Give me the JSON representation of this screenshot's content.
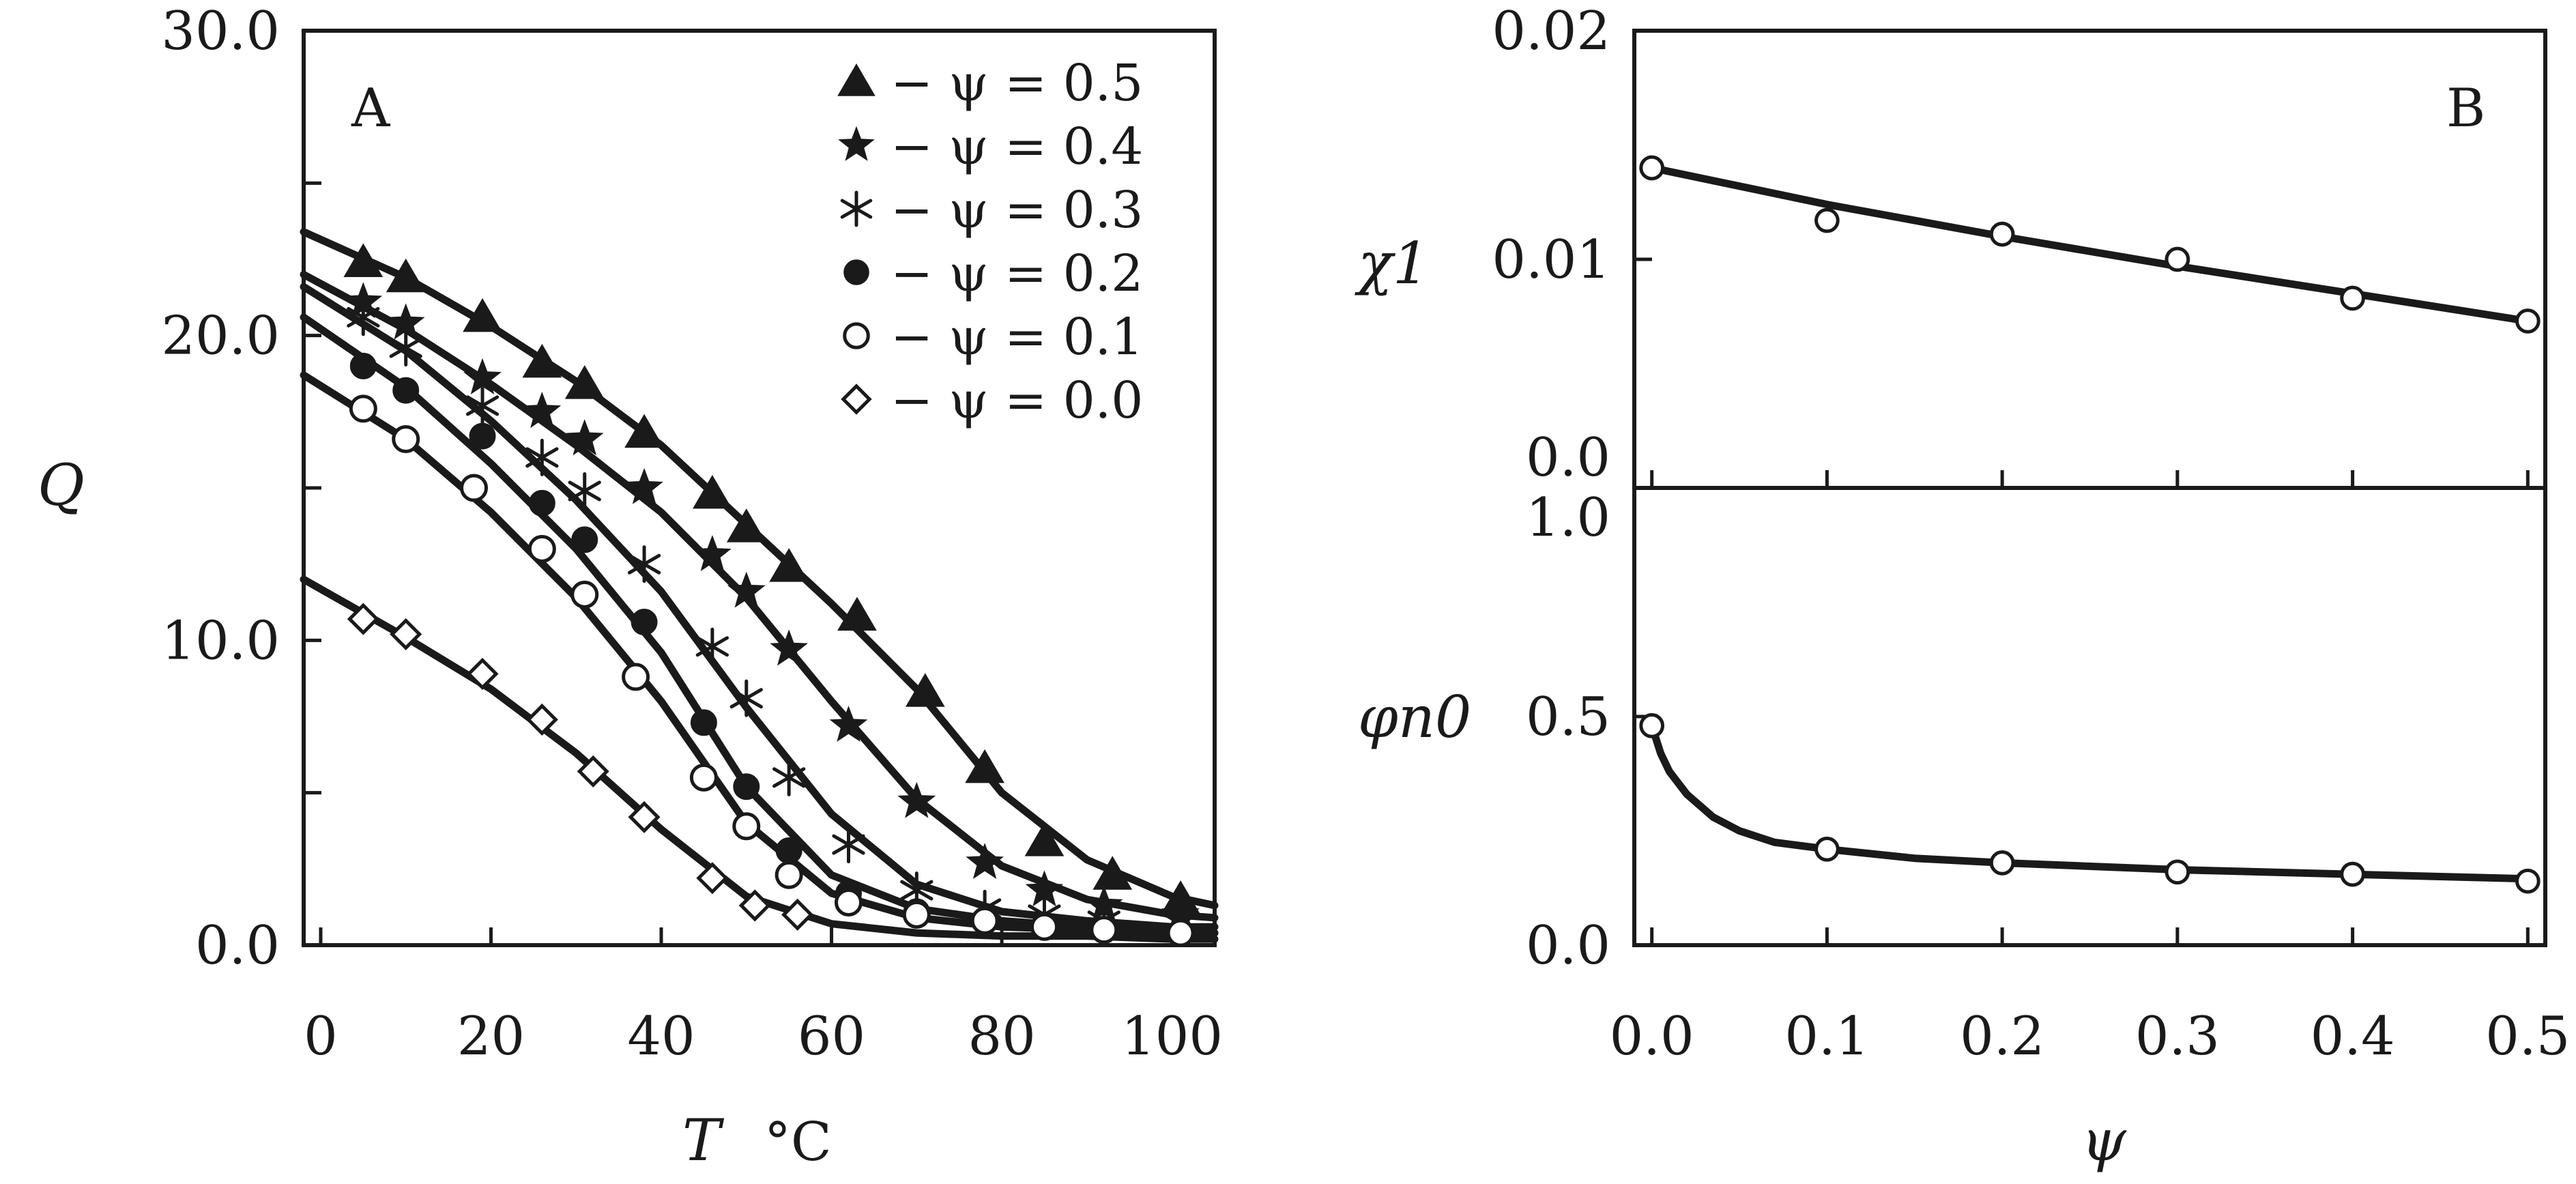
{
  "chart_data": [
    {
      "panel": "A",
      "type": "scatter",
      "title": "",
      "xlabel": "T",
      "xunit": "°C",
      "ylabel": "Q",
      "xlim": [
        -2,
        105
      ],
      "ylim": [
        0,
        30
      ],
      "xticks": [
        {
          "value": 0,
          "label": "0"
        },
        {
          "value": 20,
          "label": "20"
        },
        {
          "value": 40,
          "label": "40"
        },
        {
          "value": 60,
          "label": "60"
        },
        {
          "value": 80,
          "label": "80"
        },
        {
          "value": 100,
          "label": "100"
        }
      ],
      "yticks": [
        {
          "value": 0,
          "label": "0.0"
        },
        {
          "value": 5,
          "label": ""
        },
        {
          "value": 10,
          "label": "10.0"
        },
        {
          "value": 15,
          "label": ""
        },
        {
          "value": 20,
          "label": "20.0"
        },
        {
          "value": 25,
          "label": ""
        },
        {
          "value": 30,
          "label": "30.0"
        }
      ],
      "legend_position": "top-right",
      "series": [
        {
          "name": "ψ = 0.5",
          "psi": "0.5",
          "marker": "filled-triangle",
          "x": [
            5,
            10,
            19,
            26,
            31,
            38,
            46,
            50,
            55,
            63,
            71,
            78,
            85,
            93,
            101
          ],
          "y": [
            22.4,
            21.9,
            20.6,
            19.1,
            18.4,
            16.8,
            14.8,
            13.7,
            12.4,
            10.8,
            8.3,
            5.8,
            3.4,
            2.3,
            1.5
          ],
          "fit": {
            "x": [
              -2,
              10,
              20,
              30,
              40,
              50,
              60,
              70,
              80,
              90,
              100,
              105
            ],
            "y": [
              23.4,
              21.9,
              20.3,
              18.5,
              16.4,
              13.8,
              11.2,
              8.4,
              5.0,
              2.8,
              1.6,
              1.3
            ]
          }
        },
        {
          "name": "ψ = 0.4",
          "psi": "0.4",
          "marker": "filled-star",
          "x": [
            5,
            10,
            19,
            26,
            31,
            38,
            46,
            50,
            55,
            62,
            70,
            78,
            85,
            92,
            101
          ],
          "y": [
            21.1,
            20.4,
            18.6,
            17.5,
            16.6,
            15.0,
            12.8,
            11.6,
            9.7,
            7.2,
            4.7,
            2.7,
            1.8,
            1.3,
            1.0
          ],
          "fit": {
            "x": [
              -2,
              10,
              20,
              30,
              40,
              50,
              60,
              70,
              80,
              90,
              100,
              105
            ],
            "y": [
              22.0,
              20.2,
              18.4,
              16.4,
              14.2,
              11.4,
              8.0,
              4.8,
              2.6,
              1.5,
              1.0,
              0.9
            ]
          }
        },
        {
          "name": "ψ = 0.3",
          "psi": "0.3",
          "marker": "asterisk",
          "x": [
            5,
            10,
            19,
            26,
            31,
            38,
            46,
            50,
            55,
            62,
            70,
            78,
            85,
            92,
            101
          ],
          "y": [
            20.6,
            19.6,
            17.7,
            16.0,
            14.9,
            12.5,
            9.8,
            8.1,
            5.5,
            3.3,
            1.8,
            1.2,
            1.0,
            0.8,
            0.7
          ],
          "fit": {
            "x": [
              -2,
              10,
              20,
              30,
              40,
              50,
              60,
              70,
              80,
              90,
              100,
              105
            ],
            "y": [
              21.6,
              19.5,
              17.2,
              14.6,
              11.6,
              7.8,
              4.3,
              2.0,
              1.1,
              0.8,
              0.6,
              0.6
            ]
          }
        },
        {
          "name": "ψ = 0.2",
          "psi": "0.2",
          "marker": "filled-circle",
          "x": [
            5,
            10,
            19,
            26,
            31,
            38,
            45,
            50,
            55,
            62,
            70,
            78,
            85,
            92,
            101
          ],
          "y": [
            19.0,
            18.2,
            16.7,
            14.5,
            13.3,
            10.6,
            7.3,
            5.2,
            3.1,
            1.7,
            1.1,
            0.8,
            0.6,
            0.5,
            0.4
          ],
          "fit": {
            "x": [
              -2,
              10,
              20,
              30,
              40,
              50,
              60,
              70,
              80,
              90,
              100,
              105
            ],
            "y": [
              20.6,
              18.3,
              15.8,
              13.0,
              9.6,
              5.2,
              2.3,
              1.2,
              0.8,
              0.6,
              0.5,
              0.4
            ]
          }
        },
        {
          "name": "ψ = 0.1",
          "psi": "0.1",
          "marker": "open-circle",
          "x": [
            5,
            10,
            18,
            26,
            31,
            37,
            45,
            50,
            55,
            62,
            70,
            78,
            85,
            92,
            101
          ],
          "y": [
            17.6,
            16.6,
            15.0,
            13.0,
            11.5,
            8.8,
            5.5,
            3.9,
            2.3,
            1.4,
            1.0,
            0.8,
            0.6,
            0.5,
            0.4
          ],
          "fit": {
            "x": [
              -2,
              10,
              20,
              30,
              40,
              50,
              60,
              70,
              80,
              90,
              100,
              105
            ],
            "y": [
              18.7,
              16.6,
              14.2,
              11.4,
              8.0,
              4.0,
              1.7,
              0.9,
              0.6,
              0.5,
              0.4,
              0.4
            ]
          }
        },
        {
          "name": "ψ = 0.0",
          "psi": "0.0",
          "marker": "open-diamond",
          "x": [
            5,
            10,
            19,
            26,
            32,
            38,
            46,
            51,
            56
          ],
          "y": [
            10.7,
            10.2,
            8.9,
            7.4,
            5.7,
            4.2,
            2.2,
            1.3,
            1.0
          ],
          "fit": {
            "x": [
              -2,
              10,
              20,
              30,
              40,
              50,
              60,
              70,
              80,
              90,
              100,
              105
            ],
            "y": [
              12.0,
              10.1,
              8.4,
              6.3,
              3.8,
              1.6,
              0.7,
              0.4,
              0.3,
              0.3,
              0.2,
              0.2
            ]
          }
        }
      ]
    },
    {
      "panel": "B",
      "type": "scatter",
      "subplot": "upper",
      "title": "",
      "ylabel": "χ1",
      "xlim": [
        0,
        0.5
      ],
      "ylim": [
        0,
        0.02
      ],
      "yticks": [
        {
          "value": 0,
          "label": "0.0"
        },
        {
          "value": 0.01,
          "label": "0.01"
        },
        {
          "value": 0.02,
          "label": "0.02"
        }
      ],
      "series": [
        {
          "name": "χ1",
          "marker": "open-circle",
          "x": [
            0.0,
            0.1,
            0.2,
            0.3,
            0.4,
            0.5
          ],
          "y": [
            0.014,
            0.0117,
            0.0111,
            0.01,
            0.0083,
            0.0073
          ],
          "fit": {
            "x": [
              0.0,
              0.1,
              0.2,
              0.3,
              0.4,
              0.5
            ],
            "y": [
              0.014,
              0.0124,
              0.011,
              0.0097,
              0.0085,
              0.0073
            ]
          }
        }
      ]
    },
    {
      "panel": "B",
      "type": "scatter",
      "subplot": "lower",
      "title": "",
      "xlabel": "ψ",
      "ylabel": "φn0",
      "xlim": [
        0,
        0.5
      ],
      "ylim": [
        0,
        1.0
      ],
      "xticks": [
        {
          "value": 0.0,
          "label": "0.0"
        },
        {
          "value": 0.1,
          "label": "0.1"
        },
        {
          "value": 0.2,
          "label": "0.2"
        },
        {
          "value": 0.3,
          "label": "0.3"
        },
        {
          "value": 0.4,
          "label": "0.4"
        },
        {
          "value": 0.5,
          "label": "0.5"
        }
      ],
      "yticks": [
        {
          "value": 0,
          "label": "0.0"
        },
        {
          "value": 0.5,
          "label": "0.5"
        },
        {
          "value": 1.0,
          "label": "1.0"
        }
      ],
      "series": [
        {
          "name": "φn0",
          "marker": "open-circle",
          "x": [
            0.0,
            0.1,
            0.2,
            0.3,
            0.4,
            0.5
          ],
          "y": [
            0.48,
            0.21,
            0.18,
            0.16,
            0.155,
            0.14
          ],
          "fit": {
            "x": [
              0.0,
              0.005,
              0.01,
              0.02,
              0.035,
              0.05,
              0.07,
              0.1,
              0.15,
              0.2,
              0.3,
              0.4,
              0.5
            ],
            "y": [
              0.48,
              0.42,
              0.38,
              0.33,
              0.28,
              0.25,
              0.225,
              0.21,
              0.19,
              0.18,
              0.165,
              0.155,
              0.145
            ]
          }
        }
      ]
    }
  ],
  "labels": {
    "panelA": "A",
    "panelB": "B",
    "legend_prefix": "− ψ = ",
    "x_unit": "°C"
  }
}
